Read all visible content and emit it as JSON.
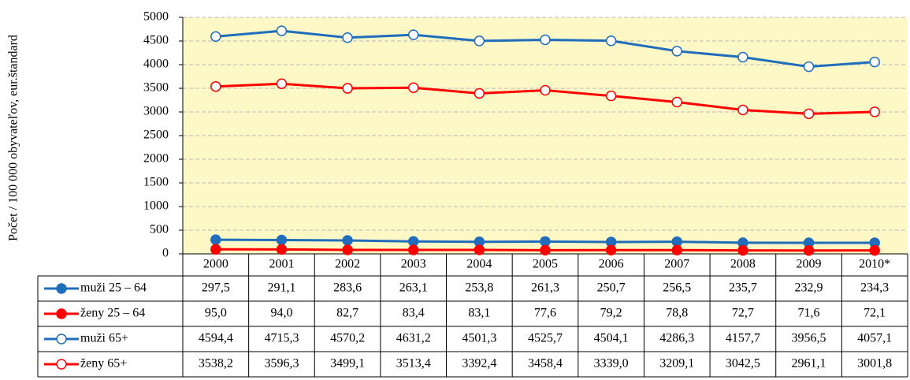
{
  "chart_data": {
    "type": "line",
    "y_label": "Počet / 100 000 obyvateľov, eur.štandard",
    "categories": [
      "2000",
      "2001",
      "2002",
      "2003",
      "2004",
      "2005",
      "2006",
      "2007",
      "2008",
      "2009",
      "2010*"
    ],
    "ylim": [
      0,
      5000
    ],
    "yticks": [
      0,
      500,
      1000,
      1500,
      2000,
      2500,
      3000,
      3500,
      4000,
      4500,
      5000
    ],
    "grid": true,
    "plot_background": "#fdf8c6",
    "series": [
      {
        "name": "muži 25 – 64",
        "color": "#1f6dbb",
        "marker": "filled",
        "values": [
          297.5,
          291.1,
          283.6,
          263.1,
          253.8,
          261.3,
          250.7,
          256.5,
          235.7,
          232.9,
          234.3
        ],
        "value_labels": [
          "297,5",
          "291,1",
          "283,6",
          "263,1",
          "253,8",
          "261,3",
          "250,7",
          "256,5",
          "235,7",
          "232,9",
          "234,3"
        ]
      },
      {
        "name": "ženy 25 – 64",
        "color": "#ff0000",
        "marker": "filled",
        "values": [
          95.0,
          94.0,
          82.7,
          83.4,
          83.1,
          77.6,
          79.2,
          78.8,
          72.7,
          71.6,
          72.1
        ],
        "value_labels": [
          "95,0",
          "94,0",
          "82,7",
          "83,4",
          "83,1",
          "77,6",
          "79,2",
          "78,8",
          "72,7",
          "71,6",
          "72,1"
        ]
      },
      {
        "name": "muži 65+",
        "color": "#1f6dbb",
        "marker": "open",
        "values": [
          4594.4,
          4715.3,
          4570.2,
          4631.2,
          4501.3,
          4525.7,
          4504.1,
          4286.3,
          4157.7,
          3956.5,
          4057.1
        ],
        "value_labels": [
          "4594,4",
          "4715,3",
          "4570,2",
          "4631,2",
          "4501,3",
          "4525,7",
          "4504,1",
          "4286,3",
          "4157,7",
          "3956,5",
          "4057,1"
        ]
      },
      {
        "name": "ženy 65+",
        "color": "#ff0000",
        "marker": "open",
        "values": [
          3538.2,
          3596.3,
          3499.1,
          3513.4,
          3392.4,
          3458.4,
          3339.0,
          3209.1,
          3042.5,
          2961.1,
          3001.8
        ],
        "value_labels": [
          "3538,2",
          "3596,3",
          "3499,1",
          "3513,4",
          "3392,4",
          "3458,4",
          "3339,0",
          "3209,1",
          "3042,5",
          "2961,1",
          "3001,8"
        ]
      }
    ]
  }
}
